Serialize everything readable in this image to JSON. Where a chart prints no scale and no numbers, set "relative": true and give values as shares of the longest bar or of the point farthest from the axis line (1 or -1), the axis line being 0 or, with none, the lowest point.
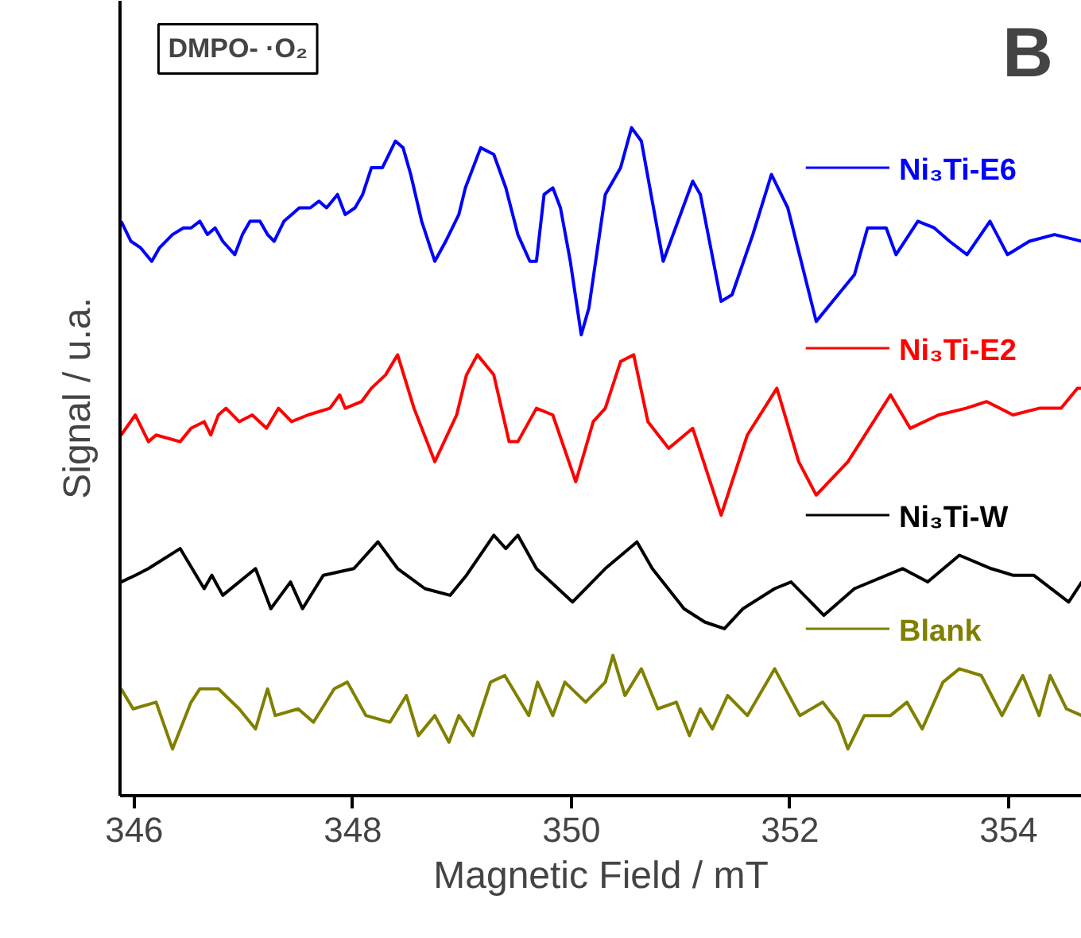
{
  "chart_data": {
    "type": "line",
    "xlabel": "Magnetic Field / mT",
    "ylabel": "Signal / u.a.",
    "relative": true,
    "grid": false,
    "legend": "right",
    "xlim": [
      345.87,
      354.67
    ],
    "xticks": [
      346,
      348,
      350,
      352,
      354
    ],
    "annotations": [
      "DMPO- ·O₂",
      "B"
    ],
    "series": [
      {
        "name": "Ni₃Ti-E6",
        "color": "#0000ff",
        "x": [
          345.88,
          345.97,
          346.06,
          346.16,
          346.23,
          346.35,
          346.45,
          346.52,
          346.6,
          346.67,
          346.74,
          346.81,
          346.92,
          346.99,
          347.06,
          347.15,
          347.22,
          347.28,
          347.37,
          347.44,
          347.51,
          347.61,
          347.69,
          347.76,
          347.86,
          347.93,
          348.02,
          348.09,
          348.17,
          348.27,
          348.39,
          348.46,
          348.53,
          348.63,
          348.75,
          348.85,
          348.97,
          349.03,
          349.17,
          349.29,
          349.4,
          349.51,
          349.62,
          349.68,
          349.75,
          349.83,
          349.9,
          349.99,
          350.09,
          350.16,
          350.31,
          350.45,
          350.55,
          350.64,
          350.84,
          351.11,
          351.18,
          351.37,
          351.47,
          351.66,
          351.83,
          351.98,
          352.24,
          352.44,
          352.59,
          352.71,
          352.88,
          352.97,
          353.17,
          353.32,
          353.46,
          353.62,
          353.83,
          353.99,
          354.19,
          354.42,
          354.67
        ],
        "values": [
          0.86,
          0.83,
          0.82,
          0.8,
          0.82,
          0.84,
          0.85,
          0.85,
          0.86,
          0.84,
          0.85,
          0.83,
          0.81,
          0.84,
          0.86,
          0.86,
          0.84,
          0.83,
          0.86,
          0.87,
          0.88,
          0.88,
          0.89,
          0.88,
          0.9,
          0.87,
          0.88,
          0.9,
          0.94,
          0.94,
          0.98,
          0.97,
          0.93,
          0.86,
          0.8,
          0.83,
          0.87,
          0.91,
          0.97,
          0.96,
          0.91,
          0.84,
          0.8,
          0.8,
          0.9,
          0.91,
          0.88,
          0.8,
          0.69,
          0.73,
          0.9,
          0.94,
          1.0,
          0.98,
          0.8,
          0.92,
          0.9,
          0.74,
          0.75,
          0.84,
          0.93,
          0.88,
          0.71,
          0.75,
          0.78,
          0.85,
          0.85,
          0.81,
          0.86,
          0.85,
          0.83,
          0.81,
          0.86,
          0.81,
          0.83,
          0.84,
          0.83
        ]
      },
      {
        "name": "Ni₃Ti-E2",
        "color": "#ff0000",
        "x": [
          345.88,
          346.01,
          346.13,
          346.2,
          346.42,
          346.52,
          346.64,
          346.7,
          346.77,
          346.84,
          346.96,
          347.08,
          347.21,
          347.32,
          347.44,
          347.59,
          347.79,
          347.88,
          347.93,
          348.08,
          348.17,
          348.3,
          348.41,
          348.56,
          348.75,
          348.95,
          349.04,
          349.14,
          349.29,
          349.43,
          349.51,
          349.68,
          349.83,
          350.04,
          350.2,
          350.31,
          350.45,
          350.57,
          350.7,
          350.89,
          351.11,
          351.37,
          351.61,
          351.88,
          352.08,
          352.24,
          352.53,
          352.92,
          353.1,
          353.36,
          353.61,
          353.8,
          354.04,
          354.28,
          354.48,
          354.63,
          354.67
        ],
        "values": [
          0.54,
          0.57,
          0.53,
          0.54,
          0.53,
          0.55,
          0.56,
          0.54,
          0.57,
          0.58,
          0.56,
          0.57,
          0.55,
          0.58,
          0.56,
          0.57,
          0.58,
          0.6,
          0.58,
          0.59,
          0.61,
          0.63,
          0.66,
          0.58,
          0.5,
          0.57,
          0.63,
          0.66,
          0.63,
          0.53,
          0.53,
          0.58,
          0.57,
          0.47,
          0.56,
          0.58,
          0.65,
          0.66,
          0.56,
          0.52,
          0.55,
          0.42,
          0.54,
          0.61,
          0.5,
          0.45,
          0.5,
          0.6,
          0.55,
          0.57,
          0.58,
          0.59,
          0.57,
          0.58,
          0.58,
          0.61,
          0.61
        ]
      },
      {
        "name": "Ni₃Ti-W",
        "color": "#000000",
        "x": [
          345.88,
          346.01,
          346.13,
          346.42,
          346.64,
          346.71,
          346.81,
          347.11,
          347.25,
          347.43,
          347.54,
          347.73,
          348.01,
          348.23,
          348.41,
          348.66,
          348.89,
          349.04,
          349.29,
          349.4,
          349.51,
          349.68,
          350.01,
          350.31,
          350.6,
          350.74,
          351.03,
          351.22,
          351.4,
          351.57,
          351.86,
          352.01,
          352.31,
          352.59,
          353.03,
          353.26,
          353.55,
          353.84,
          354.04,
          354.23,
          354.55,
          354.67
        ],
        "values": [
          0.32,
          0.33,
          0.34,
          0.37,
          0.31,
          0.33,
          0.3,
          0.34,
          0.28,
          0.32,
          0.28,
          0.33,
          0.34,
          0.38,
          0.34,
          0.31,
          0.3,
          0.33,
          0.39,
          0.37,
          0.39,
          0.34,
          0.29,
          0.34,
          0.38,
          0.34,
          0.28,
          0.26,
          0.25,
          0.28,
          0.31,
          0.32,
          0.27,
          0.31,
          0.34,
          0.32,
          0.36,
          0.34,
          0.33,
          0.33,
          0.29,
          0.32
        ]
      },
      {
        "name": "Blank",
        "color": "#808000",
        "x": [
          345.88,
          345.99,
          346.2,
          346.35,
          346.52,
          346.6,
          346.77,
          346.96,
          347.11,
          347.22,
          347.29,
          347.5,
          347.64,
          347.83,
          347.95,
          348.12,
          348.34,
          348.49,
          348.6,
          348.75,
          348.88,
          348.97,
          349.1,
          349.26,
          349.39,
          349.61,
          349.69,
          349.83,
          349.94,
          350.13,
          350.31,
          350.38,
          350.49,
          350.64,
          350.79,
          350.96,
          351.08,
          351.18,
          351.29,
          351.43,
          351.61,
          351.86,
          352.09,
          352.3,
          352.44,
          352.53,
          352.68,
          352.92,
          353.07,
          353.21,
          353.4,
          353.55,
          353.75,
          353.94,
          354.13,
          354.28,
          354.38,
          354.53,
          354.67
        ],
        "values": [
          0.16,
          0.13,
          0.14,
          0.07,
          0.14,
          0.16,
          0.16,
          0.13,
          0.1,
          0.16,
          0.12,
          0.13,
          0.11,
          0.16,
          0.17,
          0.12,
          0.11,
          0.15,
          0.09,
          0.12,
          0.08,
          0.12,
          0.09,
          0.17,
          0.18,
          0.12,
          0.17,
          0.12,
          0.17,
          0.14,
          0.17,
          0.21,
          0.15,
          0.19,
          0.13,
          0.14,
          0.09,
          0.13,
          0.1,
          0.15,
          0.12,
          0.19,
          0.12,
          0.14,
          0.11,
          0.07,
          0.12,
          0.12,
          0.14,
          0.1,
          0.17,
          0.19,
          0.18,
          0.12,
          0.18,
          0.12,
          0.18,
          0.13,
          0.12
        ]
      }
    ]
  }
}
